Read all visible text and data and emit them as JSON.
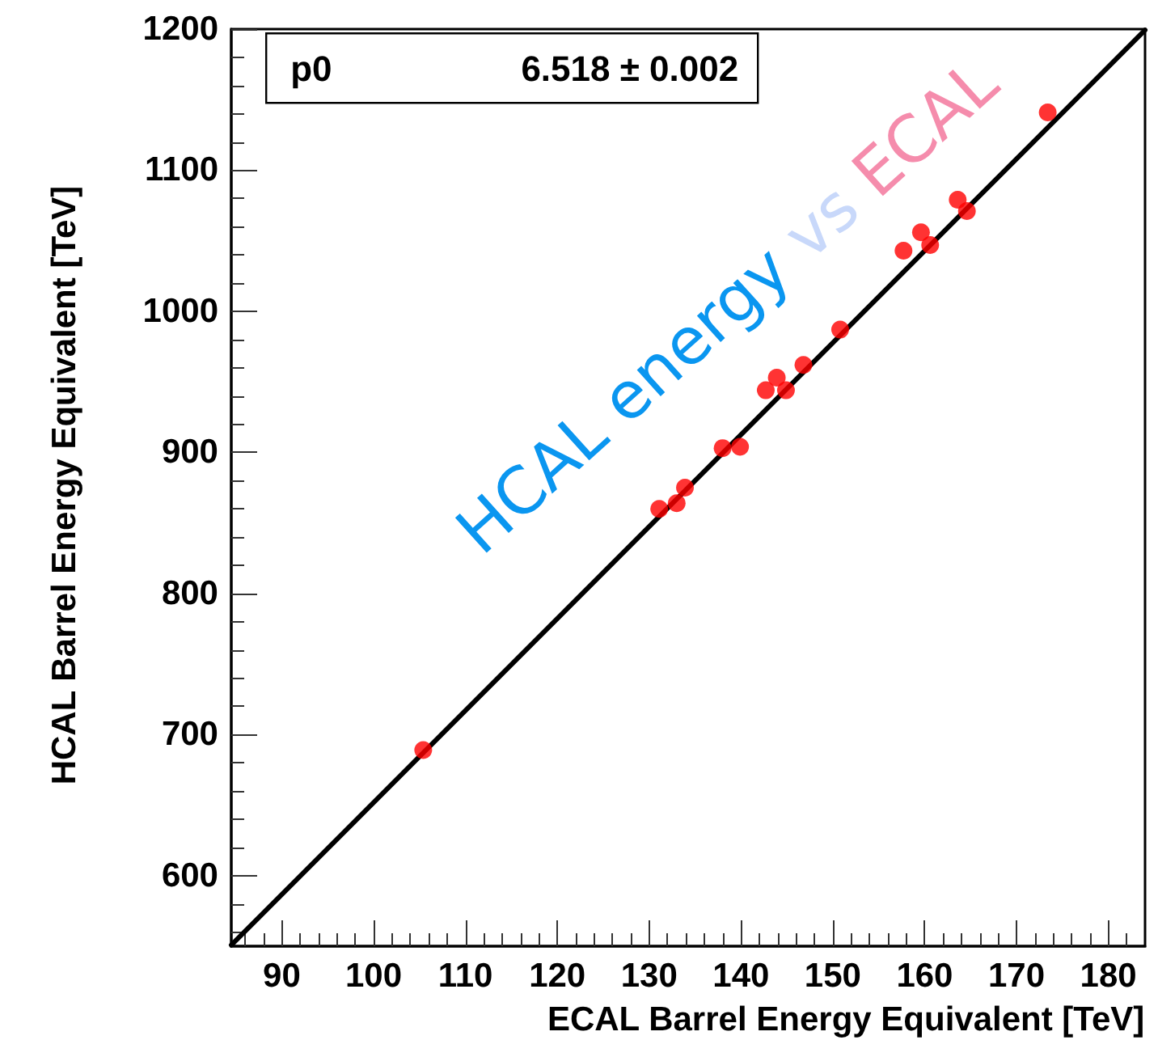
{
  "chart_data": {
    "type": "scatter",
    "xlabel": "ECAL Barrel Energy Equivalent [TeV]",
    "ylabel": "HCAL Barrel Energy Equivalent [TeV]",
    "annotations": [
      "p0 6.518 ± 0.002",
      "HCAL energy vs ECAL"
    ],
    "xlim": [
      84.5,
      184
    ],
    "ylim": [
      550,
      1200
    ],
    "xticks": [
      {
        "value": 86,
        "label": null
      },
      {
        "value": 88,
        "label": null
      },
      90,
      {
        "value": 92,
        "label": null
      },
      {
        "value": 94,
        "label": null
      },
      {
        "value": 96,
        "label": null
      },
      {
        "value": 98,
        "label": null
      },
      100,
      {
        "value": 102,
        "label": null
      },
      {
        "value": 104,
        "label": null
      },
      {
        "value": 106,
        "label": null
      },
      {
        "value": 108,
        "label": null
      },
      110,
      {
        "value": 112,
        "label": null
      },
      {
        "value": 114,
        "label": null
      },
      {
        "value": 116,
        "label": null
      },
      {
        "value": 118,
        "label": null
      },
      120,
      {
        "value": 122,
        "label": null
      },
      {
        "value": 124,
        "label": null
      },
      {
        "value": 126,
        "label": null
      },
      {
        "value": 128,
        "label": null
      },
      130,
      {
        "value": 132,
        "label": null
      },
      {
        "value": 134,
        "label": null
      },
      {
        "value": 136,
        "label": null
      },
      {
        "value": 138,
        "label": null
      },
      140,
      {
        "value": 142,
        "label": null
      },
      {
        "value": 144,
        "label": null
      },
      {
        "value": 146,
        "label": null
      },
      {
        "value": 148,
        "label": null
      },
      150,
      {
        "value": 152,
        "label": null
      },
      {
        "value": 154,
        "label": null
      },
      {
        "value": 156,
        "label": null
      },
      {
        "value": 158,
        "label": null
      },
      160,
      {
        "value": 162,
        "label": null
      },
      {
        "value": 164,
        "label": null
      },
      {
        "value": 166,
        "label": null
      },
      {
        "value": 168,
        "label": null
      },
      170,
      {
        "value": 172,
        "label": null
      },
      {
        "value": 174,
        "label": null
      },
      {
        "value": 176,
        "label": null
      },
      {
        "value": 178,
        "label": null
      },
      180,
      {
        "value": 182,
        "label": null
      }
    ],
    "yticks": [
      {
        "value": 560,
        "label": null
      },
      {
        "value": 580,
        "label": null
      },
      600,
      {
        "value": 620,
        "label": null
      },
      {
        "value": 640,
        "label": null
      },
      {
        "value": 660,
        "label": null
      },
      {
        "value": 680,
        "label": null
      },
      700,
      {
        "value": 720,
        "label": null
      },
      {
        "value": 740,
        "label": null
      },
      {
        "value": 760,
        "label": null
      },
      {
        "value": 780,
        "label": null
      },
      800,
      {
        "value": 820,
        "label": null
      },
      {
        "value": 840,
        "label": null
      },
      {
        "value": 860,
        "label": null
      },
      {
        "value": 880,
        "label": null
      },
      900,
      {
        "value": 920,
        "label": null
      },
      {
        "value": 940,
        "label": null
      },
      {
        "value": 960,
        "label": null
      },
      {
        "value": 980,
        "label": null
      },
      1000,
      {
        "value": 1020,
        "label": null
      },
      {
        "value": 1040,
        "label": null
      },
      {
        "value": 1060,
        "label": null
      },
      {
        "value": 1080,
        "label": null
      },
      1100,
      {
        "value": 1120,
        "label": null
      },
      {
        "value": 1140,
        "label": null
      },
      {
        "value": 1160,
        "label": null
      },
      {
        "value": 1180,
        "label": null
      },
      1200
    ],
    "grid": false,
    "marker": "circle",
    "series": [
      {
        "color": "#ff0000",
        "x": [
          105.4,
          131.1,
          133.0,
          133.9,
          138.0,
          139.9,
          142.7,
          143.9,
          144.9,
          146.8,
          150.8,
          157.7,
          159.6,
          160.6,
          163.6,
          164.6,
          173.4
        ],
        "values": [
          689,
          860,
          864,
          875,
          903,
          904,
          944,
          953,
          944,
          962,
          987,
          1043,
          1056,
          1047,
          1079,
          1071,
          1141
        ]
      },
      {
        "type": "line",
        "color": "#000000",
        "marker": "none",
        "line_style": "solid",
        "x": [
          84.5,
          184
        ],
        "values": [
          550.8,
          1199.3
        ]
      }
    ]
  }
}
